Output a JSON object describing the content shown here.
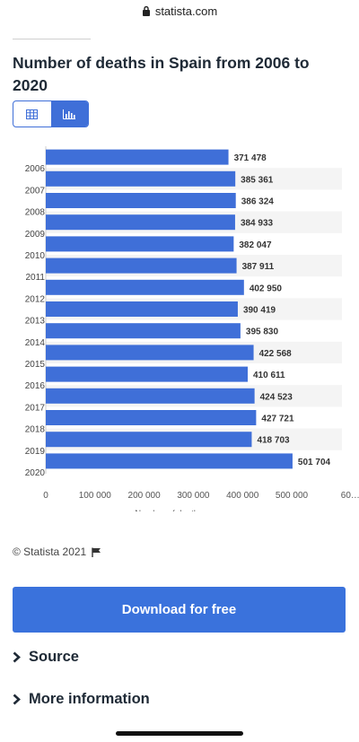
{
  "url": {
    "domain": "statista.com"
  },
  "title": "Number of deaths in Spain from 2006 to 2020",
  "toggle": {
    "table_icon": "table-icon",
    "chart_icon": "bar-chart-icon",
    "active": "chart"
  },
  "chart_data": {
    "type": "bar",
    "orientation": "horizontal",
    "categories": [
      "2006",
      "2007",
      "2008",
      "2009",
      "2010",
      "2011",
      "2012",
      "2013",
      "2014",
      "2015",
      "2016",
      "2017",
      "2018",
      "2019",
      "2020"
    ],
    "values": [
      371478,
      385361,
      386324,
      384933,
      382047,
      387911,
      402950,
      390419,
      395830,
      422568,
      410611,
      424523,
      427721,
      418703,
      501704
    ],
    "value_labels": [
      "371 478",
      "385 361",
      "386 324",
      "384 933",
      "382 047",
      "387 911",
      "402 950",
      "390 419",
      "395 830",
      "422 568",
      "410 611",
      "424 523",
      "427 721",
      "418 703",
      "501 704"
    ],
    "x_ticks": [
      "0",
      "100 000",
      "200 000",
      "300 000",
      "400 000",
      "500 000",
      "60…"
    ],
    "xlabel": "Number of deaths",
    "xlim": [
      0,
      600000
    ],
    "bar_color": "#3f6fd8",
    "grid": "alternating row bands"
  },
  "copyright": "© Statista 2021",
  "download_button": "Download for free",
  "source_label": "Source",
  "more_info_label": "More information",
  "colors": {
    "accent": "#3a72dc",
    "title": "#1f2a36"
  }
}
